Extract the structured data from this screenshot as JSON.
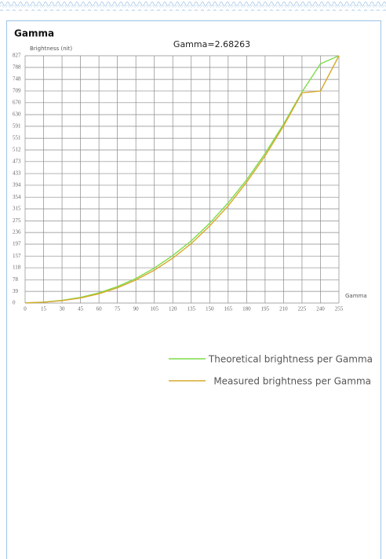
{
  "chart_data": {
    "type": "line",
    "title": "Gamma",
    "subtitle": "Gamma=2.68263",
    "y_label": "Brightness (nit)",
    "x_label": "Gamma",
    "x": [
      0,
      15,
      30,
      45,
      60,
      75,
      90,
      105,
      120,
      135,
      150,
      165,
      180,
      195,
      210,
      225,
      240,
      255
    ],
    "series": [
      {
        "name": "Theoretical brightness per Gamma",
        "color": "#7ddc48",
        "values": [
          0.5,
          3,
          9,
          19,
          34,
          55,
          82,
          117,
          159,
          208,
          267,
          335,
          412,
          500,
          598,
          706,
          800,
          827
        ]
      },
      {
        "name": "Measured brightness per Gamma",
        "color": "#d9a82c",
        "values": [
          0.4,
          2.7,
          7.9,
          17,
          31,
          51,
          77,
          110,
          150,
          199,
          258,
          325,
          404,
          492,
          592,
          703,
          709,
          827
        ]
      }
    ],
    "xlim": [
      0,
      255
    ],
    "ylim": [
      0,
      827
    ],
    "xticks": [
      0,
      15,
      30,
      45,
      60,
      75,
      90,
      105,
      120,
      135,
      150,
      165,
      180,
      195,
      210,
      225,
      240,
      255
    ],
    "yticks": [
      0,
      39,
      78,
      118,
      157,
      197,
      236,
      275,
      315,
      354,
      394,
      433,
      473,
      512,
      551,
      591,
      630,
      670,
      709,
      748,
      788,
      827
    ],
    "grid": true
  }
}
